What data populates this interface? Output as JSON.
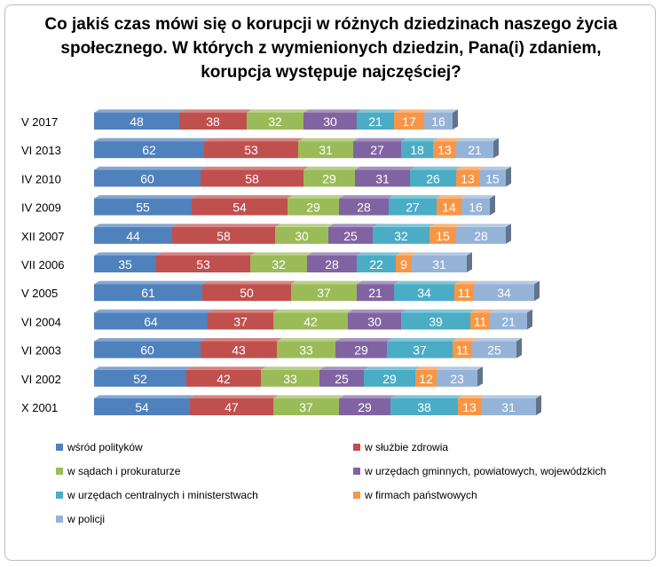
{
  "title": "Co jakiś czas mówi się o korupcji w różnych dziedzinach naszego życia społecznego. W których z wymienionych dziedzin, Pana(i) zdaniem, korupcja występuje najczęściej?",
  "chart_data": {
    "type": "bar",
    "orientation": "horizontal",
    "stacked": true,
    "categories": [
      "V 2017",
      "VI 2013",
      "IV 2010",
      "IV 2009",
      "XII 2007",
      "VII 2006",
      "V 2005",
      "VI 2004",
      "VI 2003",
      "VI 2002",
      "X 2001"
    ],
    "series": [
      {
        "name": "wśród polityków",
        "color": "#4f81bd",
        "values": [
          48,
          62,
          60,
          55,
          44,
          35,
          61,
          64,
          60,
          52,
          54
        ]
      },
      {
        "name": "w służbie zdrowia",
        "color": "#c0504d",
        "values": [
          38,
          53,
          58,
          54,
          58,
          53,
          50,
          37,
          43,
          42,
          47
        ]
      },
      {
        "name": "w sądach i prokuraturze",
        "color": "#9bbb59",
        "values": [
          32,
          31,
          29,
          29,
          30,
          32,
          37,
          42,
          33,
          33,
          37
        ]
      },
      {
        "name": "w urzędach gminnych,  powiatowych,  wojewódzkich",
        "color": "#8064a2",
        "values": [
          30,
          27,
          31,
          28,
          25,
          28,
          21,
          30,
          29,
          25,
          29
        ]
      },
      {
        "name": "w urzędach centralnych  i ministerstwach",
        "color": "#4bacc6",
        "values": [
          21,
          18,
          26,
          27,
          32,
          22,
          34,
          39,
          37,
          29,
          38
        ]
      },
      {
        "name": "w firmach państwowych",
        "color": "#f79646",
        "values": [
          17,
          13,
          13,
          14,
          15,
          9,
          11,
          11,
          11,
          12,
          13
        ]
      },
      {
        "name": "w policji",
        "color": "#95b3d7",
        "values": [
          16,
          21,
          15,
          16,
          28,
          31,
          34,
          21,
          25,
          23,
          31
        ]
      }
    ],
    "data_labels": true,
    "legend_position": "bottom",
    "grid": false
  }
}
